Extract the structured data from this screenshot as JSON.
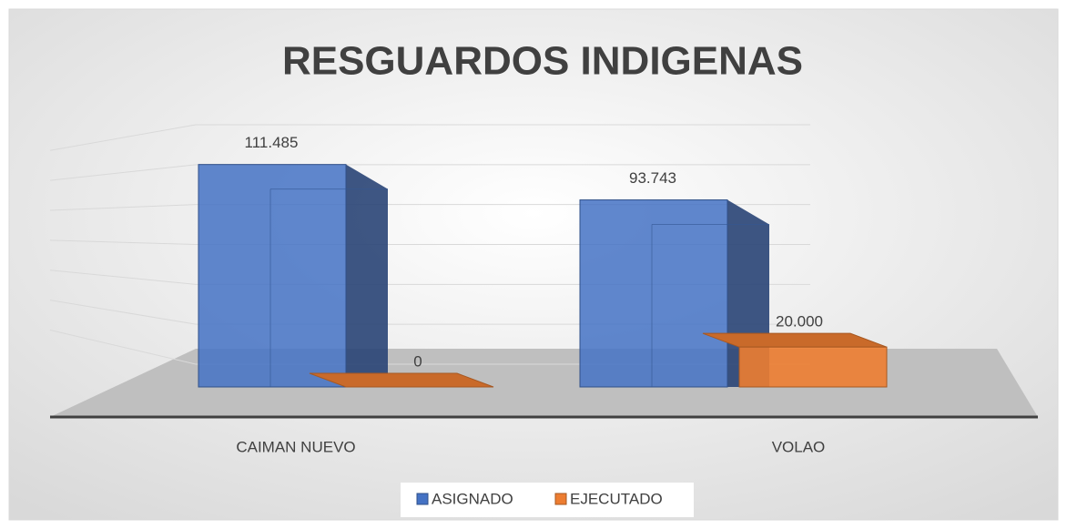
{
  "chart_data": {
    "type": "bar",
    "title": "RESGUARDOS INDIGENAS",
    "categories": [
      "CAIMAN NUEVO",
      "VOLAO"
    ],
    "series": [
      {
        "name": "ASIGNADO",
        "color": "#4472c4",
        "values": [
          111485,
          93743
        ],
        "value_labels": [
          "111.485",
          "93.743"
        ]
      },
      {
        "name": "EJECUTADO",
        "color": "#ed7d31",
        "values": [
          0,
          20000
        ],
        "value_labels": [
          "0",
          "20.000"
        ]
      }
    ],
    "ylim": [
      0,
      120000
    ],
    "yticks": [
      0,
      20000,
      40000,
      60000,
      80000,
      100000,
      120000
    ],
    "grid": true,
    "legend": "bottom"
  }
}
